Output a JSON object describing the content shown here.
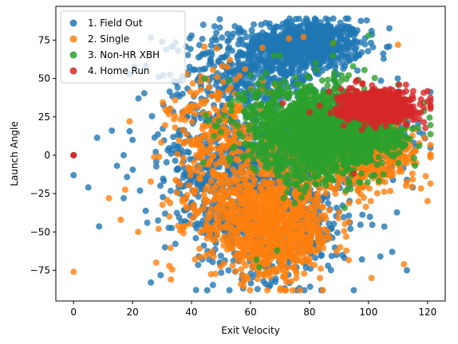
{
  "chart_data": {
    "type": "scatter",
    "title": "",
    "xlabel": "Exit Velocity",
    "ylabel": "Launch Angle",
    "xlim": [
      -6,
      126
    ],
    "ylim": [
      -95,
      97
    ],
    "x_ticks": [
      0,
      20,
      40,
      60,
      80,
      100,
      120
    ],
    "y_ticks": [
      -75,
      -50,
      -25,
      0,
      25,
      50,
      75
    ],
    "grid": false,
    "legend_position": "upper-left",
    "series": [
      {
        "name": "1. Field Out",
        "color": "#1f77b4",
        "clusters": [
          {
            "cx": 80,
            "cy": 72,
            "sx": 9,
            "sy": 8,
            "n": 650
          },
          {
            "cx": 62,
            "cy": 55,
            "sx": 12,
            "sy": 14,
            "n": 450
          },
          {
            "cx": 68,
            "cy": -45,
            "sx": 13,
            "sy": 18,
            "n": 550
          },
          {
            "cx": 62,
            "cy": -5,
            "sx": 14,
            "sy": 18,
            "n": 500
          },
          {
            "cx": 98,
            "cy": 15,
            "sx": 9,
            "sy": 12,
            "n": 250
          },
          {
            "cx": 45,
            "cy": 5,
            "sx": 12,
            "sy": 30,
            "n": 200
          }
        ],
        "points": [
          [
            0,
            0
          ],
          [
            0,
            -13
          ],
          [
            5,
            -21
          ],
          [
            13,
            16
          ],
          [
            17,
            0
          ],
          [
            17,
            -28
          ],
          [
            20,
            10
          ],
          [
            22,
            37
          ],
          [
            25,
            -44
          ],
          [
            30,
            74
          ],
          [
            31,
            -60
          ],
          [
            95,
            80
          ],
          [
            101,
            81
          ],
          [
            108,
            -63
          ],
          [
            113,
            -16
          ],
          [
            115,
            -21
          ],
          [
            113,
            -75
          ],
          [
            104,
            -66
          ],
          [
            84,
            -88
          ],
          [
            40,
            78
          ],
          [
            44,
            85
          ]
        ]
      },
      {
        "name": "2. Single",
        "color": "#ff7f0e",
        "clusters": [
          {
            "cx": 68,
            "cy": -52,
            "sx": 10,
            "sy": 14,
            "n": 600
          },
          {
            "cx": 62,
            "cy": -35,
            "sx": 12,
            "sy": 16,
            "n": 400
          },
          {
            "cx": 50,
            "cy": 10,
            "sx": 9,
            "sy": 22,
            "n": 300
          },
          {
            "cx": 92,
            "cy": -5,
            "sx": 12,
            "sy": 10,
            "n": 350
          },
          {
            "cx": 105,
            "cy": 5,
            "sx": 8,
            "sy": 9,
            "n": 150
          }
        ],
        "points": [
          [
            0,
            -76
          ],
          [
            12,
            -28
          ],
          [
            16,
            -42
          ],
          [
            19,
            22
          ],
          [
            28,
            -70
          ],
          [
            33,
            -81
          ],
          [
            64,
            70
          ],
          [
            73,
            76
          ],
          [
            78,
            77
          ],
          [
            88,
            73
          ],
          [
            110,
            72
          ],
          [
            112,
            -71
          ],
          [
            101,
            -80
          ]
        ]
      },
      {
        "name": "3. Non-HR XBH",
        "color": "#2ca02c",
        "clusters": [
          {
            "cx": 80,
            "cy": 22,
            "sx": 11,
            "sy": 13,
            "n": 1000
          },
          {
            "cx": 82,
            "cy": 0,
            "sx": 10,
            "sy": 10,
            "n": 450
          },
          {
            "cx": 100,
            "cy": 15,
            "sx": 8,
            "sy": 9,
            "n": 400
          }
        ],
        "points": [
          [
            68,
            65
          ],
          [
            70,
            65
          ],
          [
            88,
            73
          ],
          [
            62,
            -68
          ],
          [
            69,
            -62
          ],
          [
            63,
            -73
          ],
          [
            44,
            -5
          ],
          [
            100,
            78
          ]
        ]
      },
      {
        "name": "4. Home Run",
        "color": "#d62728",
        "clusters": [
          {
            "cx": 103,
            "cy": 32,
            "sx": 6,
            "sy": 5,
            "n": 750
          }
        ],
        "points": [
          [
            0,
            0
          ],
          [
            0,
            0
          ],
          [
            80,
            28
          ],
          [
            95,
            -12
          ],
          [
            71,
            34
          ]
        ]
      }
    ]
  }
}
